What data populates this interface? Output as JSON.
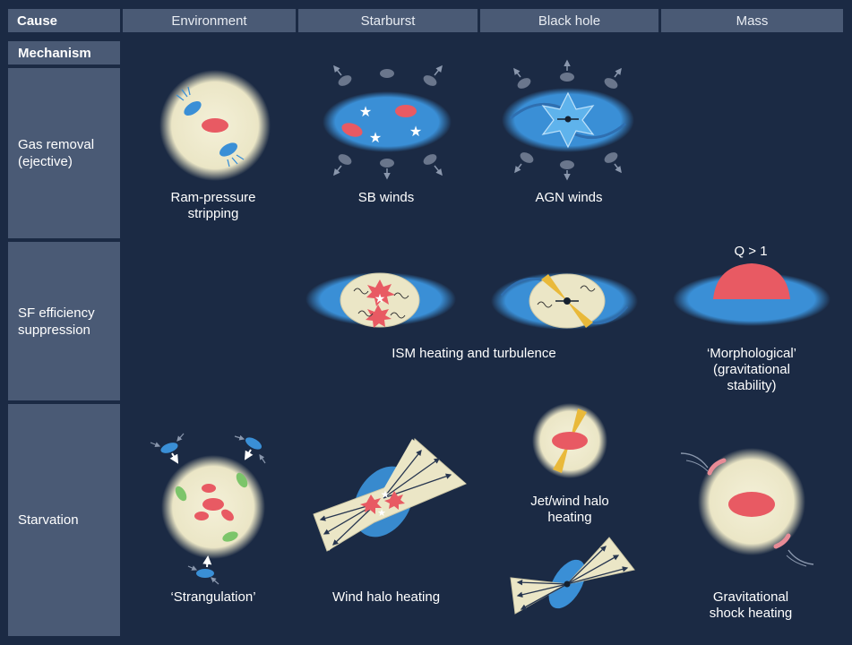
{
  "header": {
    "cause": "Cause",
    "columns": [
      "Environment",
      "Starburst",
      "Black hole",
      "Mass"
    ]
  },
  "rows": {
    "mechanism": "Mechanism",
    "gas_removal": "Gas removal\n(ejective)",
    "sf_suppression": "SF efficiency\nsuppression",
    "starvation": "Starvation"
  },
  "captions": {
    "ram_pressure": "Ram-pressure\nstripping",
    "sb_winds": "SB winds",
    "agn_winds": "AGN winds",
    "ism_heating": "ISM heating and turbulence",
    "morphological": "‘Morphological’\n(gravitational stability)",
    "q_label": "Q > 1",
    "strangulation": "‘Strangulation’",
    "wind_halo": "Wind halo heating",
    "jet_wind": "Jet/wind halo\nheating",
    "grav_shock": "Gravitational\nshock heating"
  },
  "colors": {
    "background": "#1b2a44",
    "header": "#4a5a75",
    "halo": "#efebd0",
    "gas_blue": "#3a8fd6",
    "hot_red": "#e85a63",
    "jet_yellow": "#e9b93a",
    "green": "#7cc56a"
  }
}
